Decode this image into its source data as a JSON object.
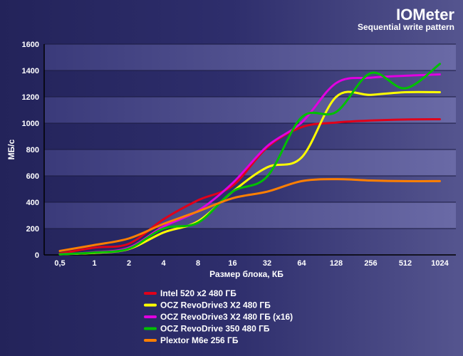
{
  "chart_data": {
    "type": "line",
    "title": "IOMeter",
    "subtitle": "Sequential write pattern",
    "xlabel": "Размер блока, КБ",
    "ylabel": "МБ/с",
    "categories": [
      "0,5",
      "1",
      "2",
      "4",
      "8",
      "16",
      "32",
      "64",
      "128",
      "256",
      "512",
      "1024"
    ],
    "ylim": [
      0,
      1600
    ],
    "yticks": [
      "0",
      "200",
      "400",
      "600",
      "800",
      "1000",
      "1200",
      "1400",
      "1600"
    ],
    "grid": true,
    "legend_position": "bottom",
    "series": [
      {
        "name": "Intel 520 x2 480 ГБ",
        "color": "#e0001a",
        "values": [
          10,
          55,
          85,
          270,
          415,
          525,
          815,
          970,
          1005,
          1020,
          1028,
          1030
        ]
      },
      {
        "name": "OCZ RevoDrive3 X2 480 ГБ",
        "color": "#ffff00",
        "values": [
          5,
          15,
          45,
          170,
          255,
          480,
          665,
          740,
          1200,
          1215,
          1235,
          1235
        ]
      },
      {
        "name": "OCZ RevoDrive3 X2 480 ГБ (x16)",
        "color": "#e000e0",
        "values": [
          5,
          20,
          55,
          215,
          335,
          545,
          825,
          1005,
          1305,
          1345,
          1360,
          1370
        ]
      },
      {
        "name": "OCZ RevoDrive 350 480 ГБ",
        "color": "#00c000",
        "values": [
          5,
          18,
          48,
          200,
          245,
          480,
          595,
          1045,
          1085,
          1380,
          1265,
          1450
        ]
      },
      {
        "name": "Plextor M6e 256 ГБ",
        "color": "#ff7f00",
        "values": [
          30,
          75,
          125,
          235,
          330,
          430,
          480,
          560,
          575,
          565,
          560,
          560
        ]
      }
    ]
  }
}
